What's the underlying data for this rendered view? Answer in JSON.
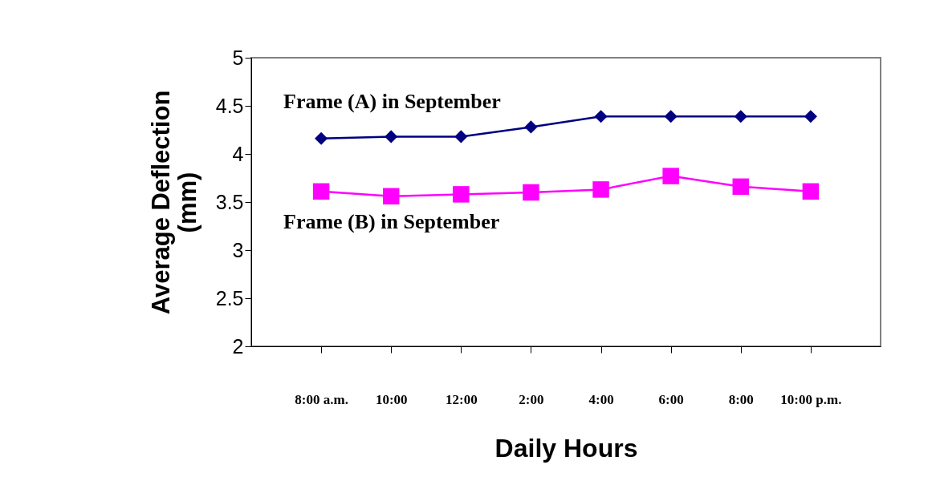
{
  "chart_data": {
    "type": "line",
    "xlabel": "Daily Hours",
    "ylabel": "Average Deflection (mm)",
    "categories": [
      "8:00 a.m.",
      "10:00",
      "12:00",
      "2:00",
      "4:00",
      "6:00",
      "8:00",
      "10:00 p.m."
    ],
    "ylim": [
      2,
      5
    ],
    "yticks": [
      2,
      2.5,
      3,
      3.5,
      4,
      4.5,
      5
    ],
    "grid": false,
    "series": [
      {
        "name": "Frame (A) in September",
        "color": "#000080",
        "marker": "diamond",
        "values": [
          4.16,
          4.18,
          4.18,
          4.28,
          4.39,
          4.39,
          4.39,
          4.39
        ]
      },
      {
        "name": "Frame (B) in September",
        "color": "#ff00ff",
        "marker": "square",
        "values": [
          3.61,
          3.56,
          3.58,
          3.6,
          3.63,
          3.77,
          3.66,
          3.61
        ]
      }
    ]
  }
}
